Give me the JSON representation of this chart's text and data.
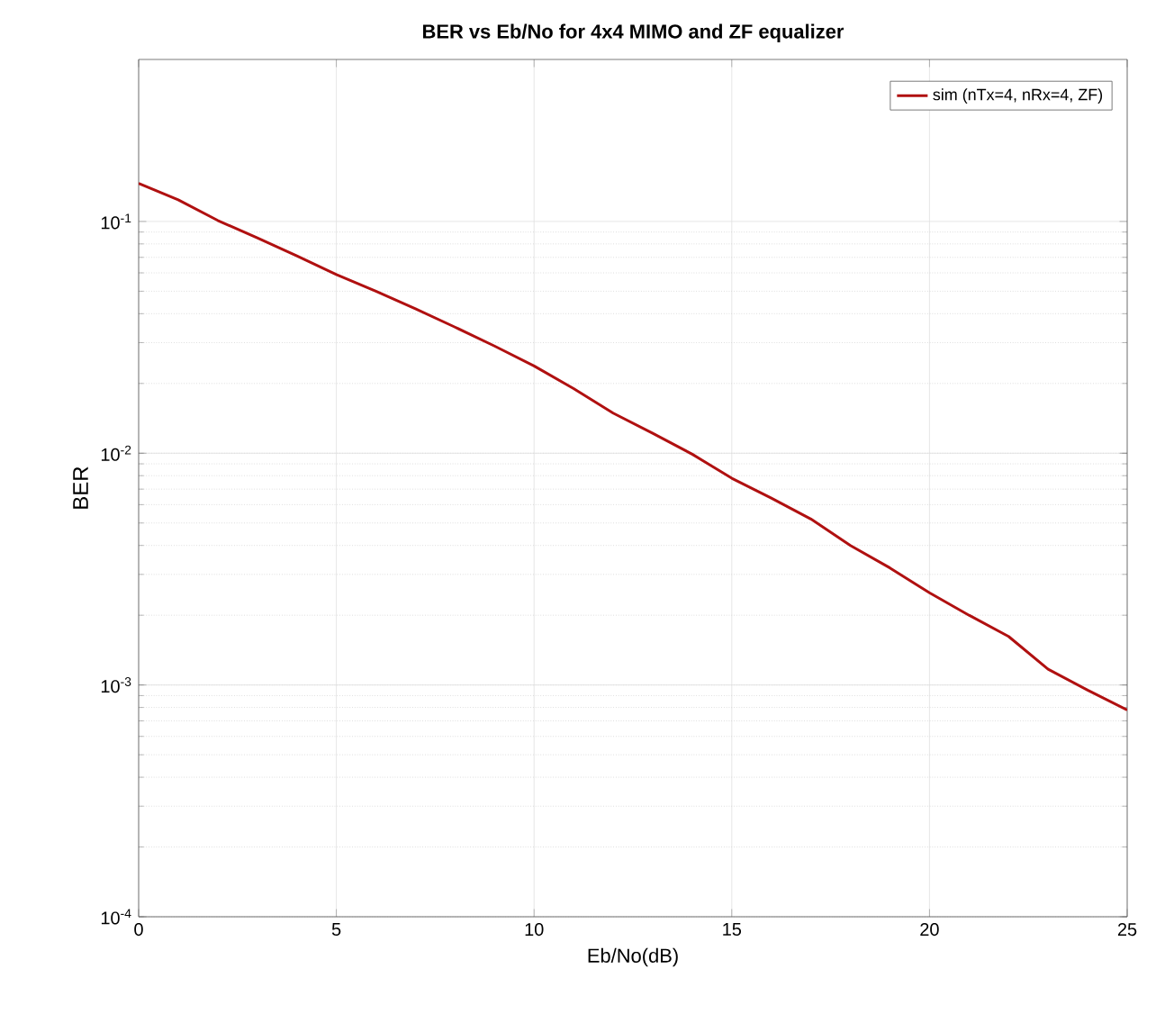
{
  "chart_data": {
    "type": "line",
    "title": "BER vs Eb/No for 4x4 MIMO and ZF equalizer",
    "xlabel": "Eb/No(dB)",
    "ylabel": "BER",
    "x": [
      0,
      1,
      2,
      3,
      4,
      5,
      6,
      7,
      8,
      9,
      10,
      11,
      12,
      13,
      14,
      15,
      16,
      17,
      18,
      19,
      20,
      21,
      22,
      23,
      24,
      25
    ],
    "series": [
      {
        "name": "sim (nTx=4, nRx=4, ZF)",
        "color": "#b01010",
        "values": [
          0.146,
          0.124,
          0.101,
          0.085,
          0.071,
          0.059,
          0.05,
          0.042,
          0.035,
          0.029,
          0.0238,
          0.019,
          0.0149,
          0.0122,
          0.0099,
          0.0078,
          0.0064,
          0.0052,
          0.004,
          0.0032,
          0.0025,
          0.002,
          0.00162,
          0.00117,
          0.00095,
          0.00078
        ]
      }
    ],
    "log": "y",
    "xlim": [
      0,
      25
    ],
    "ylim": [
      0.0001,
      0.5
    ],
    "xticks": [
      0,
      5,
      10,
      15,
      20,
      25
    ],
    "yticks": [
      {
        "value": 0.0001,
        "label": "10$^{-4}$"
      },
      {
        "value": 0.001,
        "label": "10$^{-3}$"
      },
      {
        "value": 0.01,
        "label": "10$^{-2}$"
      },
      {
        "value": 0.1,
        "label": "10$^{-1}$"
      }
    ],
    "grid": true,
    "legend": "top right",
    "marker": "none",
    "line_style": "solid"
  }
}
